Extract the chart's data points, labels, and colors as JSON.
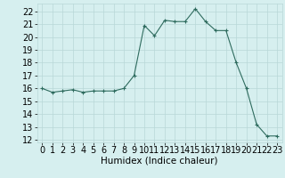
{
  "x": [
    0,
    1,
    2,
    3,
    4,
    5,
    6,
    7,
    8,
    9,
    10,
    11,
    12,
    13,
    14,
    15,
    16,
    17,
    18,
    19,
    20,
    21,
    22,
    23
  ],
  "y": [
    16.0,
    15.7,
    15.8,
    15.9,
    15.7,
    15.8,
    15.8,
    15.8,
    16.0,
    17.0,
    20.9,
    20.1,
    21.3,
    21.2,
    21.2,
    22.2,
    21.2,
    20.5,
    20.5,
    18.0,
    16.0,
    13.2,
    12.3,
    12.3
  ],
  "xlabel": "Humidex (Indice chaleur)",
  "xlim": [
    -0.5,
    23.5
  ],
  "ylim": [
    11.8,
    22.6
  ],
  "yticks": [
    12,
    13,
    14,
    15,
    16,
    17,
    18,
    19,
    20,
    21,
    22
  ],
  "xticks": [
    0,
    1,
    2,
    3,
    4,
    5,
    6,
    7,
    8,
    9,
    10,
    11,
    12,
    13,
    14,
    15,
    16,
    17,
    18,
    19,
    20,
    21,
    22,
    23
  ],
  "line_color": "#2e6b5e",
  "marker": "+",
  "bg_color": "#d6efef",
  "grid_color": "#b8d8d8",
  "font_size": 7,
  "xlabel_fontsize": 7.5
}
